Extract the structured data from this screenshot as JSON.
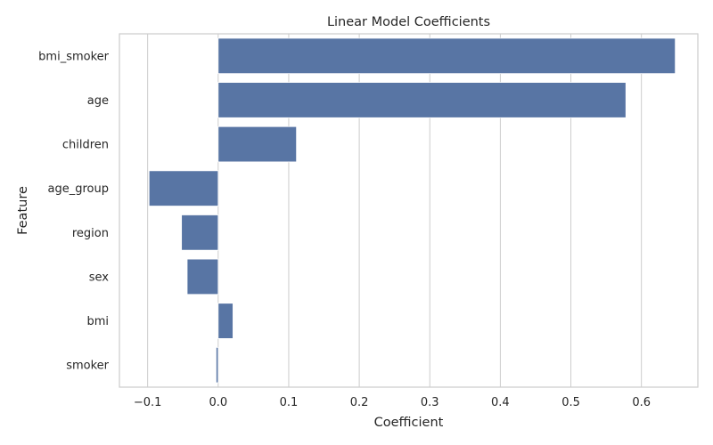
{
  "chart_data": {
    "type": "bar",
    "orientation": "horizontal",
    "title": "Linear Model Coefficients",
    "xlabel": "Coefficient",
    "ylabel": "Feature",
    "categories": [
      "bmi_smoker",
      "age",
      "children",
      "age_group",
      "region",
      "sex",
      "bmi",
      "smoker"
    ],
    "values": [
      0.648,
      0.578,
      0.111,
      -0.098,
      -0.052,
      -0.044,
      0.021,
      -0.003
    ],
    "xlim": [
      -0.14,
      0.68
    ],
    "xticks": [
      -0.1,
      0.0,
      0.1,
      0.2,
      0.3,
      0.4,
      0.5,
      0.6
    ],
    "xtick_labels": [
      "−0.1",
      "0.0",
      "0.1",
      "0.2",
      "0.3",
      "0.4",
      "0.5",
      "0.6"
    ],
    "grid": "vertical",
    "bar_color": "#5875a4",
    "grid_color": "#cccccc",
    "spine_color": "#cccccc"
  }
}
